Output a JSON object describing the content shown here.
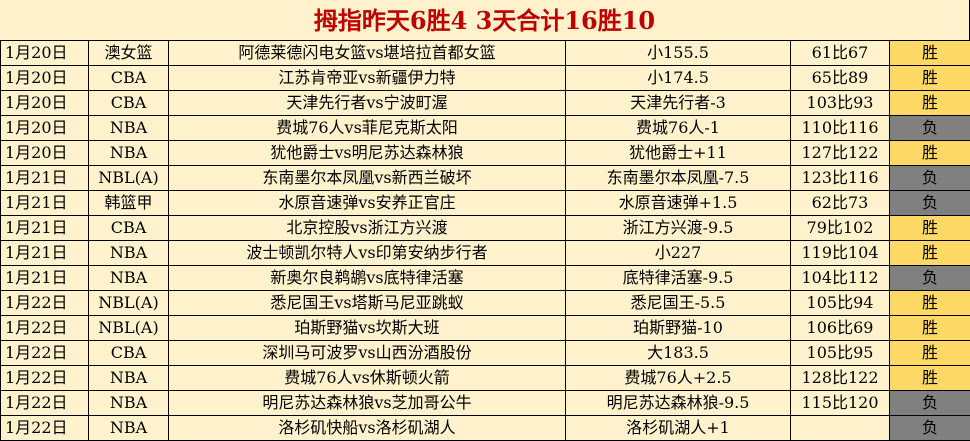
{
  "title": "拇指昨天6胜4  3天合计16胜10",
  "colors": {
    "win": "#FFD966",
    "lose": "#808080",
    "title": "#C00000",
    "background": "#FFF2CC"
  },
  "rows": [
    {
      "date": "1月20日",
      "league": "澳女篮",
      "match": "阿德莱德闪电女篮vs堪培拉首都女篮",
      "pick": "小155.5",
      "score": "61比67",
      "result": "胜"
    },
    {
      "date": "1月20日",
      "league": "CBA",
      "match": "江苏肯帝亚vs新疆伊力特",
      "pick": "小174.5",
      "score": "65比89",
      "result": "胜"
    },
    {
      "date": "1月20日",
      "league": "CBA",
      "match": "天津先行者vs宁波町渥",
      "pick": "天津先行者-3",
      "score": "103比93",
      "result": "胜"
    },
    {
      "date": "1月20日",
      "league": "NBA",
      "match": "费城76人vs菲尼克斯太阳",
      "pick": "费城76人-1",
      "score": "110比116",
      "result": "负"
    },
    {
      "date": "1月20日",
      "league": "NBA",
      "match": "犹他爵士vs明尼苏达森林狼",
      "pick": "犹他爵士+11",
      "score": "127比122",
      "result": "胜"
    },
    {
      "date": "1月21日",
      "league": "NBL(A)",
      "match": "东南墨尔本凤凰vs新西兰破坏",
      "pick": "东南墨尔本凤凰-7.5",
      "score": "123比116",
      "result": "负"
    },
    {
      "date": "1月21日",
      "league": "韩篮甲",
      "match": "水原音速弹vs安养正官庄",
      "pick": "水原音速弹+1.5",
      "score": "62比73",
      "result": "负"
    },
    {
      "date": "1月21日",
      "league": "CBA",
      "match": "北京控股vs浙江方兴渡",
      "pick": "浙江方兴渡-9.5",
      "score": "79比102",
      "result": "胜"
    },
    {
      "date": "1月21日",
      "league": "NBA",
      "match": "波士顿凯尔特人vs印第安纳步行者",
      "pick": "小227",
      "score": "119比104",
      "result": "胜"
    },
    {
      "date": "1月21日",
      "league": "NBA",
      "match": "新奥尔良鹈鹕vs底特律活塞",
      "pick": "底特律活塞-9.5",
      "score": "104比112",
      "result": "负"
    },
    {
      "date": "1月22日",
      "league": "NBL(A)",
      "match": "悉尼国王vs塔斯马尼亚跳蚁",
      "pick": "悉尼国王-5.5",
      "score": "105比94",
      "result": "胜"
    },
    {
      "date": "1月22日",
      "league": "NBL(A)",
      "match": "珀斯野猫vs坎斯大班",
      "pick": "珀斯野猫-10",
      "score": "106比69",
      "result": "胜"
    },
    {
      "date": "1月22日",
      "league": "CBA",
      "match": "深圳马可波罗vs山西汾酒股份",
      "pick": "大183.5",
      "score": "105比95",
      "result": "胜"
    },
    {
      "date": "1月22日",
      "league": "NBA",
      "match": "费城76人vs休斯顿火箭",
      "pick": "费城76人+2.5",
      "score": "128比122",
      "result": "胜"
    },
    {
      "date": "1月22日",
      "league": "NBA",
      "match": "明尼苏达森林狼vs芝加哥公牛",
      "pick": "明尼苏达森林狼-9.5",
      "score": "115比120",
      "result": "负"
    },
    {
      "date": "1月22日",
      "league": "NBA",
      "match": "洛杉矶快船vs洛杉矶湖人",
      "pick": "洛杉矶湖人+1",
      "score": "",
      "result": "负"
    }
  ]
}
